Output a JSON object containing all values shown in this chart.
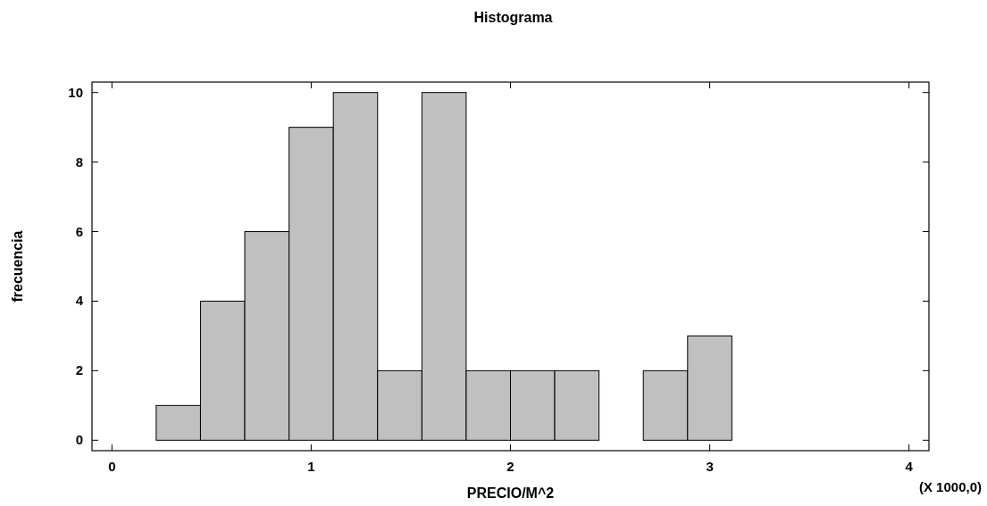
{
  "chart_data": {
    "type": "histogram",
    "title": "Histograma",
    "xlabel": "PRECIO/M^2",
    "ylabel": "frecuencia",
    "bins": [
      0,
      0.2222,
      0.4444,
      0.6667,
      0.8889,
      1.1111,
      1.3333,
      1.5556,
      1.7778,
      2,
      2.2222,
      2.4444,
      2.6667,
      2.8889,
      3.1111,
      3.3333,
      3.5556,
      3.7778,
      4
    ],
    "values": [
      0,
      1,
      4,
      6,
      9,
      10,
      2,
      10,
      2,
      2,
      2,
      0,
      2,
      3,
      0,
      0,
      0,
      0
    ],
    "color": "#c0c0c0",
    "xlim": [
      -0.1,
      4.1
    ],
    "xticks": [
      0,
      1,
      2,
      3,
      4
    ],
    "ylim": [
      -0.3,
      10.3
    ],
    "yticks": [
      0,
      2,
      4,
      6,
      8,
      10
    ],
    "annotations": [
      "(X 1000,0)"
    ]
  }
}
